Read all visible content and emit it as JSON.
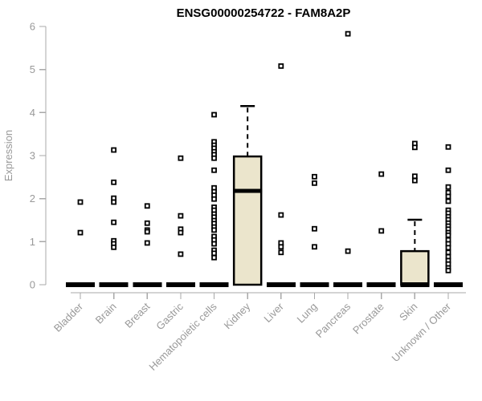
{
  "chart_data": {
    "type": "boxplot",
    "title": "ENSG00000254722 - FAM8A2P",
    "ylabel": "Expression",
    "xlabel": "",
    "ylim": [
      0,
      6
    ],
    "y_ticks": [
      0,
      1,
      2,
      3,
      4,
      5,
      6
    ],
    "grid": false,
    "legend": "none",
    "axis_color": "#a8a8a8",
    "tick_label_color": "#999999",
    "box_fill": "#ebe5cc",
    "box_stroke": "#000000",
    "marker_color": "#000000",
    "categories": [
      "Bladder",
      "Brain",
      "Breast",
      "Gastric",
      "Hematopoietic cells",
      "Kidney",
      "Liver",
      "Lung",
      "Pancreas",
      "Prostate",
      "Skin",
      "Unknown / Other"
    ],
    "series": [
      {
        "category": "Bladder",
        "box": {
          "q1": 0,
          "median": 0,
          "q3": 0,
          "whisker_low": 0,
          "whisker_high": 0
        },
        "points": [
          1.92,
          1.21
        ]
      },
      {
        "category": "Brain",
        "box": {
          "q1": 0,
          "median": 0,
          "q3": 0,
          "whisker_low": 0,
          "whisker_high": 0
        },
        "points": [
          3.13,
          2.38,
          2.01,
          1.92,
          1.45,
          1.02,
          0.95,
          0.87
        ]
      },
      {
        "category": "Breast",
        "box": {
          "q1": 0,
          "median": 0,
          "q3": 0,
          "whisker_low": 0,
          "whisker_high": 0
        },
        "points": [
          1.83,
          1.43,
          1.27,
          1.23,
          0.97
        ]
      },
      {
        "category": "Gastric",
        "box": {
          "q1": 0,
          "median": 0,
          "q3": 0,
          "whisker_low": 0,
          "whisker_high": 0
        },
        "points": [
          2.94,
          1.6,
          1.29,
          1.21,
          0.71
        ]
      },
      {
        "category": "Hematopoietic cells",
        "box": {
          "q1": 0,
          "median": 0,
          "q3": 0,
          "whisker_low": 0,
          "whisker_high": 0
        },
        "points": [
          3.95,
          3.32,
          3.24,
          3.17,
          3.09,
          3.02,
          2.94,
          2.66,
          2.25,
          2.16,
          2.08,
          1.99,
          1.8,
          1.73,
          1.64,
          1.57,
          1.49,
          1.42,
          1.34,
          1.27,
          1.12,
          1.04,
          0.95,
          0.8,
          0.73,
          0.63
        ]
      },
      {
        "category": "Kidney",
        "box": {
          "q1": 0,
          "median": 2.18,
          "q3": 2.98,
          "whisker_low": 0,
          "whisker_high": 4.15
        },
        "points": []
      },
      {
        "category": "Liver",
        "box": {
          "q1": 0,
          "median": 0,
          "q3": 0,
          "whisker_low": 0,
          "whisker_high": 0
        },
        "points": [
          5.08,
          1.62,
          0.97,
          0.88,
          0.75
        ]
      },
      {
        "category": "Lung",
        "box": {
          "q1": 0,
          "median": 0,
          "q3": 0,
          "whisker_low": 0,
          "whisker_high": 0
        },
        "points": [
          2.51,
          2.36,
          1.3,
          0.88
        ]
      },
      {
        "category": "Pancreas",
        "box": {
          "q1": 0,
          "median": 0,
          "q3": 0,
          "whisker_low": 0,
          "whisker_high": 0
        },
        "points": [
          5.83,
          0.78
        ]
      },
      {
        "category": "Prostate",
        "box": {
          "q1": 0,
          "median": 0,
          "q3": 0,
          "whisker_low": 0,
          "whisker_high": 0
        },
        "points": [
          2.57,
          1.25
        ]
      },
      {
        "category": "Skin",
        "box": {
          "q1": 0,
          "median": 0,
          "q3": 0.78,
          "whisker_low": 0,
          "whisker_high": 1.51
        },
        "points": [
          3.28,
          3.19,
          2.52,
          2.42
        ]
      },
      {
        "category": "Unknown / Other",
        "box": {
          "q1": 0,
          "median": 0,
          "q3": 0,
          "whisker_low": 0,
          "whisker_high": 0
        },
        "points": [
          3.2,
          2.66,
          2.27,
          2.14,
          2.05,
          1.94,
          1.73,
          1.66,
          1.58,
          1.51,
          1.43,
          1.36,
          1.29,
          1.21,
          1.15,
          1.04,
          0.95,
          0.86,
          0.75,
          0.65,
          0.56,
          0.48,
          0.39,
          0.33
        ]
      }
    ]
  }
}
